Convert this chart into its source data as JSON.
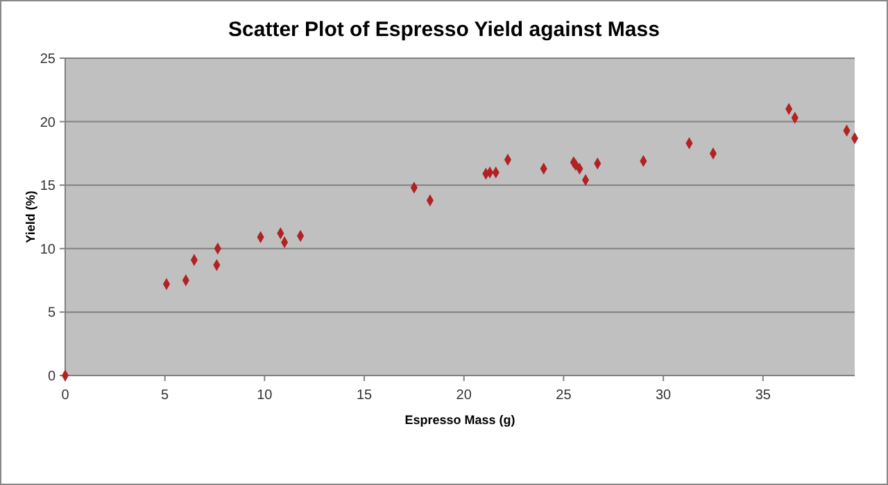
{
  "chart_data": {
    "type": "scatter",
    "title": "Scatter Plot of Espresso Yield against Mass",
    "xlabel": "Espresso Mass (g)",
    "ylabel": "Yield (%)",
    "x": [
      0,
      5.08,
      6.05,
      6.47,
      7.6,
      7.65,
      9.8,
      10.8,
      11.0,
      11.8,
      17.5,
      18.3,
      21.1,
      21.3,
      21.6,
      22.2,
      24.0,
      25.5,
      25.6,
      25.8,
      26.1,
      26.7,
      29.0,
      31.3,
      32.5,
      36.3,
      36.6,
      39.2,
      39.6
    ],
    "series": [
      {
        "color": "#b22222",
        "values": [
          0,
          7.2,
          7.5,
          9.1,
          8.7,
          10.0,
          10.9,
          11.2,
          10.5,
          11.0,
          14.8,
          13.8,
          15.9,
          16.0,
          16.0,
          17.0,
          16.3,
          16.8,
          16.6,
          16.3,
          15.4,
          16.7,
          16.9,
          18.3,
          17.5,
          21.0,
          20.3,
          19.3,
          18.7
        ]
      }
    ],
    "xlim": [
      0,
      39.6
    ],
    "xticks": [
      0,
      5,
      10,
      15,
      20,
      25,
      30,
      35
    ],
    "ylim": [
      0,
      25
    ],
    "yticks": [
      0,
      5,
      10,
      15,
      20,
      25
    ],
    "grid": "y",
    "marker": "diamond"
  }
}
